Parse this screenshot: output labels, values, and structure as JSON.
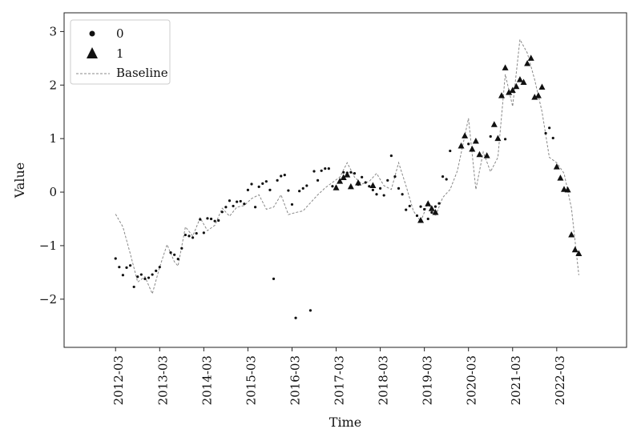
{
  "chart_data": {
    "type": "scatter",
    "xlabel": "Time",
    "ylabel": "Value",
    "xlim": [
      "2011-01",
      "2023-10"
    ],
    "ylim": [
      -2.9,
      3.35
    ],
    "x_ticks": [
      "2012-03",
      "2013-03",
      "2014-03",
      "2015-03",
      "2016-03",
      "2017-03",
      "2018-03",
      "2019-03",
      "2020-03",
      "2021-03",
      "2022-03"
    ],
    "y_ticks": [
      -2,
      -1,
      0,
      1,
      2,
      3
    ],
    "y_tick_labels": [
      "−2",
      "−1",
      "0",
      "1",
      "2",
      "3"
    ],
    "legend": {
      "position": "top-left",
      "entries": [
        {
          "label": "0",
          "marker": "circle"
        },
        {
          "label": "1",
          "marker": "triangle"
        },
        {
          "label": "Baseline",
          "marker": "dashed-line"
        }
      ]
    },
    "series": [
      {
        "name": "0",
        "marker": "circle",
        "points": [
          [
            "2012-03",
            -1.24
          ],
          [
            "2012-04",
            -1.4
          ],
          [
            "2012-05",
            -1.55
          ],
          [
            "2012-06",
            -1.41
          ],
          [
            "2012-07",
            -1.37
          ],
          [
            "2012-08",
            -1.77
          ],
          [
            "2012-09",
            -1.58
          ],
          [
            "2012-10",
            -1.54
          ],
          [
            "2012-11",
            -1.62
          ],
          [
            "2012-12",
            -1.6
          ],
          [
            "2013-01",
            -1.54
          ],
          [
            "2013-02",
            -1.47
          ],
          [
            "2013-03",
            -1.4
          ],
          [
            "2013-06",
            -1.13
          ],
          [
            "2013-07",
            -1.17
          ],
          [
            "2013-08",
            -1.25
          ],
          [
            "2013-09",
            -1.05
          ],
          [
            "2013-10",
            -0.8
          ],
          [
            "2013-11",
            -0.82
          ],
          [
            "2013-12",
            -0.85
          ],
          [
            "2014-01",
            -0.77
          ],
          [
            "2014-02",
            -0.51
          ],
          [
            "2014-03",
            -0.76
          ],
          [
            "2014-04",
            -0.49
          ],
          [
            "2014-05",
            -0.5
          ],
          [
            "2014-06",
            -0.54
          ],
          [
            "2014-07",
            -0.53
          ],
          [
            "2014-08",
            -0.37
          ],
          [
            "2014-09",
            -0.28
          ],
          [
            "2014-10",
            -0.16
          ],
          [
            "2014-11",
            -0.26
          ],
          [
            "2014-12",
            -0.18
          ],
          [
            "2015-01",
            -0.17
          ],
          [
            "2015-02",
            -0.22
          ],
          [
            "2015-03",
            0.04
          ],
          [
            "2015-04",
            0.15
          ],
          [
            "2015-05",
            -0.28
          ],
          [
            "2015-06",
            0.1
          ],
          [
            "2015-07",
            0.16
          ],
          [
            "2015-08",
            0.2
          ],
          [
            "2015-09",
            0.04
          ],
          [
            "2015-10",
            -1.62
          ],
          [
            "2015-11",
            0.22
          ],
          [
            "2015-12",
            0.3
          ],
          [
            "2016-01",
            0.32
          ],
          [
            "2016-02",
            0.03
          ],
          [
            "2016-03",
            -0.23
          ],
          [
            "2016-04",
            -2.35
          ],
          [
            "2016-05",
            0.02
          ],
          [
            "2016-06",
            0.07
          ],
          [
            "2016-07",
            0.12
          ],
          [
            "2016-08",
            -2.21
          ],
          [
            "2016-09",
            0.39
          ],
          [
            "2016-10",
            0.22
          ],
          [
            "2016-11",
            0.4
          ],
          [
            "2016-12",
            0.44
          ],
          [
            "2017-01",
            0.44
          ],
          [
            "2017-02",
            0.11
          ],
          [
            "2017-03",
            0.1
          ],
          [
            "2017-05",
            0.37
          ],
          [
            "2017-06",
            0.36
          ],
          [
            "2017-07",
            0.37
          ],
          [
            "2017-08",
            0.35
          ],
          [
            "2017-09",
            0.14
          ],
          [
            "2017-10",
            0.28
          ],
          [
            "2017-11",
            0.18
          ],
          [
            "2017-12",
            0.11
          ],
          [
            "2018-01",
            0.04
          ],
          [
            "2018-02",
            -0.04
          ],
          [
            "2018-03",
            0.07
          ],
          [
            "2018-04",
            -0.06
          ],
          [
            "2018-05",
            0.22
          ],
          [
            "2018-06",
            0.68
          ],
          [
            "2018-07",
            0.29
          ],
          [
            "2018-08",
            0.07
          ],
          [
            "2018-09",
            -0.04
          ],
          [
            "2018-10",
            -0.33
          ],
          [
            "2018-11",
            -0.26
          ],
          [
            "2019-01",
            -0.44
          ],
          [
            "2019-02",
            -0.27
          ],
          [
            "2019-03",
            -0.32
          ],
          [
            "2019-04",
            -0.5
          ],
          [
            "2019-05",
            -0.38
          ],
          [
            "2019-06",
            -0.27
          ],
          [
            "2019-07",
            -0.21
          ],
          [
            "2019-08",
            0.29
          ],
          [
            "2019-09",
            0.24
          ],
          [
            "2019-10",
            0.77
          ],
          [
            "2020-03",
            0.9
          ],
          [
            "2020-09",
            1.04
          ],
          [
            "2021-01",
            0.99
          ],
          [
            "2021-12",
            1.1
          ],
          [
            "2022-01",
            1.2
          ],
          [
            "2022-02",
            1.01
          ]
        ]
      },
      {
        "name": "1",
        "marker": "triangle",
        "points": [
          [
            "2017-03",
            0.08
          ],
          [
            "2017-04",
            0.2
          ],
          [
            "2017-05",
            0.27
          ],
          [
            "2017-06",
            0.32
          ],
          [
            "2017-07",
            0.1
          ],
          [
            "2017-09",
            0.17
          ],
          [
            "2018-01",
            0.12
          ],
          [
            "2019-02",
            -0.53
          ],
          [
            "2019-04",
            -0.22
          ],
          [
            "2019-05",
            -0.31
          ],
          [
            "2019-06",
            -0.38
          ],
          [
            "2020-01",
            0.86
          ],
          [
            "2020-02",
            1.05
          ],
          [
            "2020-04",
            0.8
          ],
          [
            "2020-05",
            0.95
          ],
          [
            "2020-06",
            0.7
          ],
          [
            "2020-08",
            0.68
          ],
          [
            "2020-10",
            1.26
          ],
          [
            "2020-11",
            1.0
          ],
          [
            "2020-12",
            1.8
          ],
          [
            "2021-01",
            2.32
          ],
          [
            "2021-02",
            1.86
          ],
          [
            "2021-03",
            1.9
          ],
          [
            "2021-04",
            1.97
          ],
          [
            "2021-05",
            2.1
          ],
          [
            "2021-06",
            2.05
          ],
          [
            "2021-07",
            2.4
          ],
          [
            "2021-08",
            2.5
          ],
          [
            "2021-09",
            1.77
          ],
          [
            "2021-10",
            1.8
          ],
          [
            "2021-11",
            1.96
          ],
          [
            "2022-03",
            0.47
          ],
          [
            "2022-04",
            0.26
          ],
          [
            "2022-05",
            0.05
          ],
          [
            "2022-06",
            0.04
          ],
          [
            "2022-07",
            -0.8
          ],
          [
            "2022-08",
            -1.08
          ],
          [
            "2022-09",
            -1.15
          ]
        ]
      }
    ],
    "baseline": {
      "name": "Baseline",
      "style": "dashed",
      "points": [
        [
          "2012-03",
          -0.41
        ],
        [
          "2012-05",
          -0.65
        ],
        [
          "2012-07",
          -1.15
        ],
        [
          "2012-09",
          -1.68
        ],
        [
          "2012-11",
          -1.58
        ],
        [
          "2013-01",
          -1.9
        ],
        [
          "2013-03",
          -1.4
        ],
        [
          "2013-05",
          -0.98
        ],
        [
          "2013-07",
          -1.3
        ],
        [
          "2013-08",
          -1.38
        ],
        [
          "2013-10",
          -0.65
        ],
        [
          "2013-12",
          -0.82
        ],
        [
          "2014-02",
          -0.48
        ],
        [
          "2014-04",
          -0.72
        ],
        [
          "2014-06",
          -0.62
        ],
        [
          "2014-08",
          -0.3
        ],
        [
          "2014-10",
          -0.45
        ],
        [
          "2014-12",
          -0.28
        ],
        [
          "2015-02",
          -0.25
        ],
        [
          "2015-04",
          -0.12
        ],
        [
          "2015-06",
          -0.05
        ],
        [
          "2015-08",
          -0.32
        ],
        [
          "2015-10",
          -0.28
        ],
        [
          "2015-12",
          -0.05
        ],
        [
          "2016-02",
          -0.42
        ],
        [
          "2016-04",
          -0.38
        ],
        [
          "2016-06",
          -0.35
        ],
        [
          "2016-08",
          -0.2
        ],
        [
          "2016-10",
          -0.05
        ],
        [
          "2016-12",
          0.08
        ],
        [
          "2017-02",
          0.18
        ],
        [
          "2017-04",
          0.28
        ],
        [
          "2017-06",
          0.55
        ],
        [
          "2017-08",
          0.28
        ],
        [
          "2017-10",
          0.15
        ],
        [
          "2017-12",
          0.2
        ],
        [
          "2018-02",
          0.35
        ],
        [
          "2018-04",
          0.12
        ],
        [
          "2018-06",
          0.05
        ],
        [
          "2018-08",
          0.55
        ],
        [
          "2018-10",
          0.12
        ],
        [
          "2018-12",
          -0.35
        ],
        [
          "2019-02",
          -0.55
        ],
        [
          "2019-04",
          -0.2
        ],
        [
          "2019-06",
          -0.45
        ],
        [
          "2019-08",
          -0.1
        ],
        [
          "2019-10",
          0.05
        ],
        [
          "2019-12",
          0.4
        ],
        [
          "2020-03",
          1.38
        ],
        [
          "2020-05",
          0.05
        ],
        [
          "2020-07",
          0.75
        ],
        [
          "2020-09",
          0.38
        ],
        [
          "2020-11",
          0.65
        ],
        [
          "2021-01",
          2.2
        ],
        [
          "2021-03",
          1.6
        ],
        [
          "2021-05",
          2.85
        ],
        [
          "2021-07",
          2.6
        ],
        [
          "2021-09",
          2.1
        ],
        [
          "2021-11",
          1.5
        ],
        [
          "2022-01",
          0.65
        ],
        [
          "2022-03",
          0.55
        ],
        [
          "2022-05",
          0.35
        ],
        [
          "2022-07",
          -0.3
        ],
        [
          "2022-09",
          -1.55
        ]
      ]
    }
  }
}
